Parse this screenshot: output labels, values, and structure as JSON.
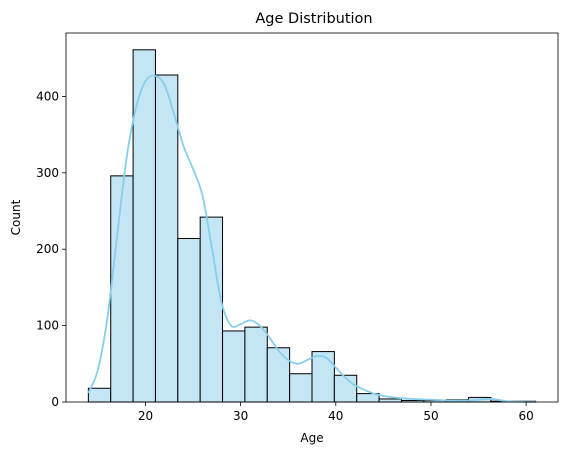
{
  "chart_data": {
    "type": "bar",
    "title": "Age Distribution",
    "xlabel": "Age",
    "ylabel": "Count",
    "xlim": [
      11.65,
      63.35
    ],
    "ylim": [
      0,
      483
    ],
    "xticks": [
      20,
      30,
      40,
      50,
      60
    ],
    "yticks": [
      0,
      100,
      200,
      300,
      400
    ],
    "grid": false,
    "bins": [
      {
        "start": 14.0,
        "end": 16.35,
        "count": 18
      },
      {
        "start": 16.35,
        "end": 18.7,
        "count": 296
      },
      {
        "start": 18.7,
        "end": 21.05,
        "count": 461
      },
      {
        "start": 21.05,
        "end": 23.4,
        "count": 428
      },
      {
        "start": 23.4,
        "end": 25.75,
        "count": 214
      },
      {
        "start": 25.75,
        "end": 28.1,
        "count": 242
      },
      {
        "start": 28.1,
        "end": 30.45,
        "count": 93
      },
      {
        "start": 30.45,
        "end": 32.8,
        "count": 98
      },
      {
        "start": 32.8,
        "end": 35.15,
        "count": 71
      },
      {
        "start": 35.15,
        "end": 37.5,
        "count": 37
      },
      {
        "start": 37.5,
        "end": 39.85,
        "count": 66
      },
      {
        "start": 39.85,
        "end": 42.2,
        "count": 35
      },
      {
        "start": 42.2,
        "end": 44.55,
        "count": 11
      },
      {
        "start": 44.55,
        "end": 46.9,
        "count": 4
      },
      {
        "start": 46.9,
        "end": 49.25,
        "count": 2
      },
      {
        "start": 49.25,
        "end": 51.6,
        "count": 2
      },
      {
        "start": 51.6,
        "end": 53.95,
        "count": 3
      },
      {
        "start": 53.95,
        "end": 56.3,
        "count": 6
      },
      {
        "start": 56.3,
        "end": 58.65,
        "count": 1
      },
      {
        "start": 58.65,
        "end": 61.0,
        "count": 1
      }
    ],
    "kde": {
      "x": [
        14.0,
        15.0,
        16.0,
        17.0,
        18.0,
        19.0,
        20.0,
        21.0,
        22.0,
        23.0,
        24.0,
        25.0,
        26.0,
        27.0,
        28.0,
        29.0,
        30.0,
        31.0,
        32.0,
        33.0,
        34.0,
        35.0,
        36.0,
        37.0,
        38.0,
        39.0,
        40.0,
        41.0,
        42.0,
        43.0,
        44.0,
        45.0,
        46.0,
        48.0,
        50.0,
        52.0,
        54.0,
        55.0,
        56.0,
        57.0,
        58.0,
        60.0,
        61.0
      ],
      "y": [
        12,
        42,
        110,
        215,
        318,
        385,
        420,
        427,
        415,
        377,
        335,
        305,
        270,
        200,
        130,
        100,
        102,
        107,
        100,
        85,
        67,
        55,
        50,
        55,
        60,
        58,
        45,
        32,
        22,
        16,
        11,
        8,
        6,
        4,
        3,
        2,
        2,
        3,
        4,
        3,
        1,
        0,
        0
      ]
    },
    "colors": {
      "bar_fill": "#c3e5f4",
      "bar_edge": "#000000",
      "kde_line": "#87ceeb",
      "axes": "#000000"
    }
  }
}
